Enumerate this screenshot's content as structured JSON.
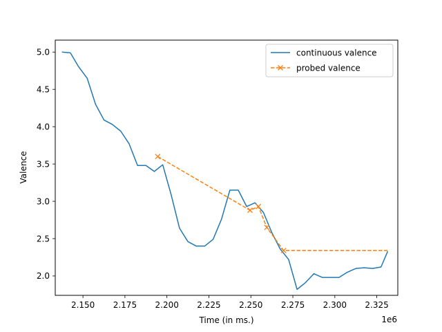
{
  "chart_data": {
    "type": "line",
    "xlabel": "Time (in ms.)",
    "ylabel": "Valence",
    "x_offset_label": "1e6",
    "x_scale": 1000000,
    "xlim": [
      2.1335,
      2.3375
    ],
    "ylim": [
      1.74,
      5.16
    ],
    "x_ticks": [
      2.15,
      2.175,
      2.2,
      2.225,
      2.25,
      2.275,
      2.3,
      2.325
    ],
    "x_tick_labels": [
      "2.150",
      "2.175",
      "2.200",
      "2.225",
      "2.250",
      "2.275",
      "2.300",
      "2.325"
    ],
    "y_ticks": [
      2.0,
      2.5,
      3.0,
      3.5,
      4.0,
      4.5,
      5.0
    ],
    "y_tick_labels": [
      "2.0",
      "2.5",
      "3.0",
      "3.5",
      "4.0",
      "4.5",
      "5.0"
    ],
    "legend_position": "top-right",
    "series": [
      {
        "name": "continuous valence",
        "color": "#1f77b4",
        "style": "solid",
        "marker": "none",
        "x": [
          2.1375,
          2.1425,
          2.1475,
          2.1525,
          2.1575,
          2.1625,
          2.1675,
          2.1725,
          2.1775,
          2.1825,
          2.1875,
          2.1925,
          2.1975,
          2.2025,
          2.2075,
          2.2125,
          2.2175,
          2.2225,
          2.2275,
          2.2325,
          2.2375,
          2.2425,
          2.2475,
          2.2525,
          2.2575,
          2.2625,
          2.2675,
          2.2725,
          2.2775,
          2.2825,
          2.2875,
          2.2925,
          2.2975,
          2.3025,
          2.3075,
          2.3125,
          2.3175,
          2.3225,
          2.3275,
          2.3315
        ],
        "y": [
          5.0,
          4.99,
          4.8,
          4.65,
          4.3,
          4.09,
          4.03,
          3.94,
          3.77,
          3.48,
          3.48,
          3.4,
          3.49,
          3.09,
          2.64,
          2.46,
          2.4,
          2.4,
          2.49,
          2.76,
          3.15,
          3.15,
          2.93,
          2.98,
          2.85,
          2.58,
          2.36,
          2.22,
          1.82,
          1.91,
          2.03,
          1.98,
          1.98,
          1.98,
          2.05,
          2.1,
          2.11,
          2.1,
          2.12,
          2.33
        ]
      },
      {
        "name": "probed valence",
        "color": "#ff7f0e",
        "style": "dashed",
        "marker": "x",
        "x": [
          2.1945,
          2.2495,
          2.2545,
          2.2595,
          2.2695,
          2.3315
        ],
        "y": [
          3.6,
          2.88,
          2.93,
          2.65,
          2.34,
          2.34
        ],
        "marker_indices": [
          0,
          1,
          2,
          3,
          4
        ]
      }
    ]
  }
}
